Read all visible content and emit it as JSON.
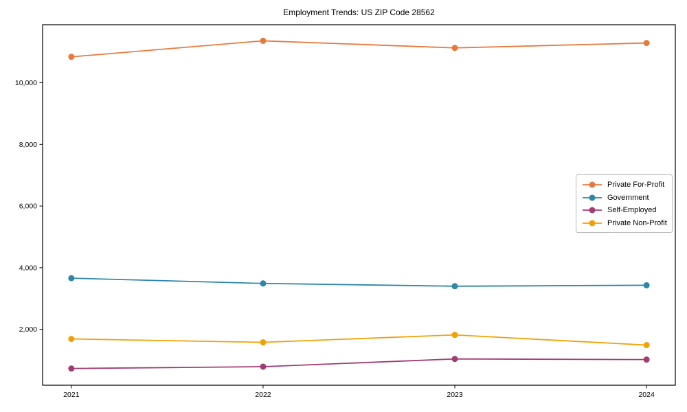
{
  "chart_data": {
    "type": "line",
    "title": "Employment Trends: US ZIP Code 28562",
    "categories": [
      "2021",
      "2022",
      "2023",
      "2024"
    ],
    "series": [
      {
        "name": "Private For-Profit",
        "color": "#E8793D",
        "values": [
          10840,
          11360,
          11130,
          11290
        ]
      },
      {
        "name": "Government",
        "color": "#2E86AB",
        "values": [
          3660,
          3490,
          3400,
          3430
        ]
      },
      {
        "name": "Self-Employed",
        "color": "#A23B72",
        "values": [
          730,
          790,
          1040,
          1020
        ]
      },
      {
        "name": "Private Non-Profit",
        "color": "#F2A104",
        "values": [
          1690,
          1580,
          1820,
          1490
        ]
      }
    ],
    "xlabel": "",
    "ylabel": "",
    "ylim": [
      188,
      11882
    ],
    "xlim": [
      -0.15,
      3.15
    ],
    "yticks": [
      2000,
      4000,
      6000,
      8000,
      10000
    ],
    "ytick_labels": [
      "2,000",
      "4,000",
      "6,000",
      "8,000",
      "10,000"
    ],
    "grid": false,
    "legend_position": "center-right",
    "marker": "circle",
    "frame_color": "#000000"
  }
}
